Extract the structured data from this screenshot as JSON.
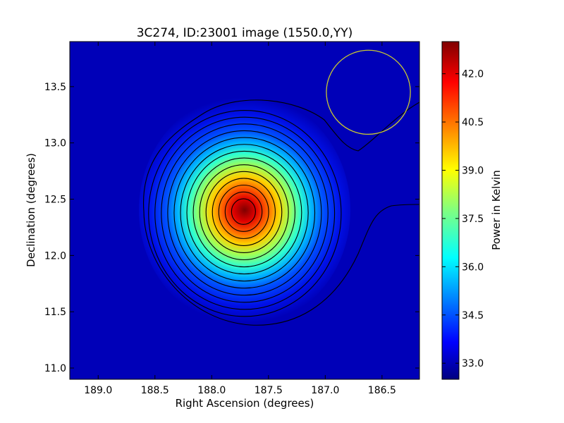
{
  "chart_data": {
    "type": "heatmap",
    "title": "3C274, ID:23001 image (1550.0,YY)",
    "xlabel": "Right Ascension (degrees)",
    "ylabel": "Declination (degrees)",
    "colorbar_label": "Power in Kelvin",
    "colormap": "jet",
    "xlim": [
      189.25,
      186.17
    ],
    "ylim": [
      10.9,
      13.9
    ],
    "x_ticks": [
      189.0,
      188.5,
      188.0,
      187.5,
      187.0,
      186.5
    ],
    "x_tick_labels": [
      "189.0",
      "188.5",
      "188.0",
      "187.5",
      "187.0",
      "186.5"
    ],
    "y_ticks": [
      11.0,
      11.5,
      12.0,
      12.5,
      13.0,
      13.5
    ],
    "y_tick_labels": [
      "11.0",
      "11.5",
      "12.0",
      "12.5",
      "13.0",
      "13.5"
    ],
    "colorbar_range": [
      32.5,
      43.0
    ],
    "colorbar_ticks": [
      33.0,
      34.5,
      36.0,
      37.5,
      39.0,
      40.5,
      42.0
    ],
    "colorbar_tick_labels": [
      "33.0",
      "34.5",
      "36.0",
      "37.5",
      "39.0",
      "40.5",
      "42.0"
    ],
    "peak": {
      "ra": 187.72,
      "dec": 12.39,
      "value": 43.0
    },
    "background_value": 32.6,
    "contour_levels": 16,
    "beam_circle": {
      "ra": 186.62,
      "dec": 13.45,
      "radius_deg": 0.37,
      "color": "#c8c832"
    }
  }
}
